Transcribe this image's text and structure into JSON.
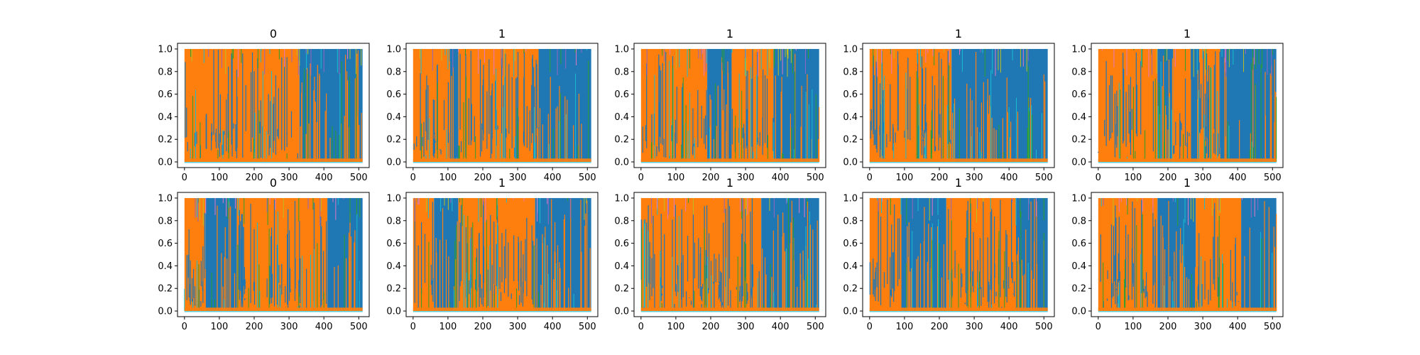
{
  "chart_data": {
    "type": "line",
    "layout": "grid",
    "rows": 2,
    "cols": 5,
    "xlim": [
      -20,
      530
    ],
    "ylim": [
      -0.05,
      1.05
    ],
    "xticks": [
      0,
      100,
      200,
      300,
      400,
      500
    ],
    "yticks": [
      0.0,
      0.2,
      0.4,
      0.6,
      0.8,
      1.0
    ],
    "ytick_labels": [
      "0.0",
      "0.2",
      "0.4",
      "0.6",
      "0.8",
      "1.0"
    ],
    "n_points": 512,
    "grid": false,
    "legend": "none",
    "colors": {
      "blue": "#1f77b4",
      "orange": "#ff7f0e",
      "cyan": "#17becf",
      "green": "#2ca02c",
      "olive": "#bcbd22",
      "purple": "#9467bd",
      "pink": "#e377c2"
    },
    "panels": [
      {
        "title": "0",
        "segments": [
          {
            "x": [
              0,
              330
            ],
            "dominant": "orange"
          },
          {
            "x": [
              330,
              511
            ],
            "dominant": "blue"
          }
        ]
      },
      {
        "title": "1",
        "segments": [
          {
            "x": [
              0,
              105
            ],
            "dominant": "orange"
          },
          {
            "x": [
              105,
              130
            ],
            "dominant": "blue"
          },
          {
            "x": [
              130,
              360
            ],
            "dominant": "orange"
          },
          {
            "x": [
              360,
              511
            ],
            "dominant": "blue"
          }
        ]
      },
      {
        "title": "1",
        "segments": [
          {
            "x": [
              0,
              190
            ],
            "dominant": "orange"
          },
          {
            "x": [
              190,
              260
            ],
            "dominant": "blue"
          },
          {
            "x": [
              260,
              380
            ],
            "dominant": "orange"
          },
          {
            "x": [
              380,
              511
            ],
            "dominant": "blue"
          }
        ]
      },
      {
        "title": "1",
        "segments": [
          {
            "x": [
              0,
              235
            ],
            "dominant": "orange"
          },
          {
            "x": [
              235,
              511
            ],
            "dominant": "blue"
          }
        ]
      },
      {
        "title": "1",
        "segments": [
          {
            "x": [
              0,
              170
            ],
            "dominant": "orange"
          },
          {
            "x": [
              170,
              215
            ],
            "dominant": "blue"
          },
          {
            "x": [
              215,
              265
            ],
            "dominant": "orange"
          },
          {
            "x": [
              265,
              290
            ],
            "dominant": "blue"
          },
          {
            "x": [
              290,
              350
            ],
            "dominant": "orange"
          },
          {
            "x": [
              350,
              511
            ],
            "dominant": "blue"
          }
        ]
      },
      {
        "title": "0",
        "segments": [
          {
            "x": [
              0,
              60
            ],
            "dominant": "orange"
          },
          {
            "x": [
              60,
              150
            ],
            "dominant": "blue"
          },
          {
            "x": [
              150,
              410
            ],
            "dominant": "orange"
          },
          {
            "x": [
              410,
              511
            ],
            "dominant": "blue"
          }
        ]
      },
      {
        "title": "1",
        "segments": [
          {
            "x": [
              0,
              60
            ],
            "dominant": "orange"
          },
          {
            "x": [
              60,
              130
            ],
            "dominant": "blue"
          },
          {
            "x": [
              130,
              350
            ],
            "dominant": "orange"
          },
          {
            "x": [
              350,
              511
            ],
            "dominant": "blue"
          }
        ]
      },
      {
        "title": "1",
        "segments": [
          {
            "x": [
              0,
              345
            ],
            "dominant": "orange"
          },
          {
            "x": [
              345,
              511
            ],
            "dominant": "blue"
          }
        ]
      },
      {
        "title": "1",
        "segments": [
          {
            "x": [
              0,
              90
            ],
            "dominant": "orange"
          },
          {
            "x": [
              90,
              220
            ],
            "dominant": "blue"
          },
          {
            "x": [
              220,
              420
            ],
            "dominant": "orange"
          },
          {
            "x": [
              420,
              511
            ],
            "dominant": "blue"
          }
        ]
      },
      {
        "title": "1",
        "segments": [
          {
            "x": [
              0,
              170
            ],
            "dominant": "orange"
          },
          {
            "x": [
              170,
              280
            ],
            "dominant": "blue"
          },
          {
            "x": [
              280,
              410
            ],
            "dominant": "orange"
          },
          {
            "x": [
              410,
              511
            ],
            "dominant": "blue"
          }
        ]
      }
    ]
  }
}
